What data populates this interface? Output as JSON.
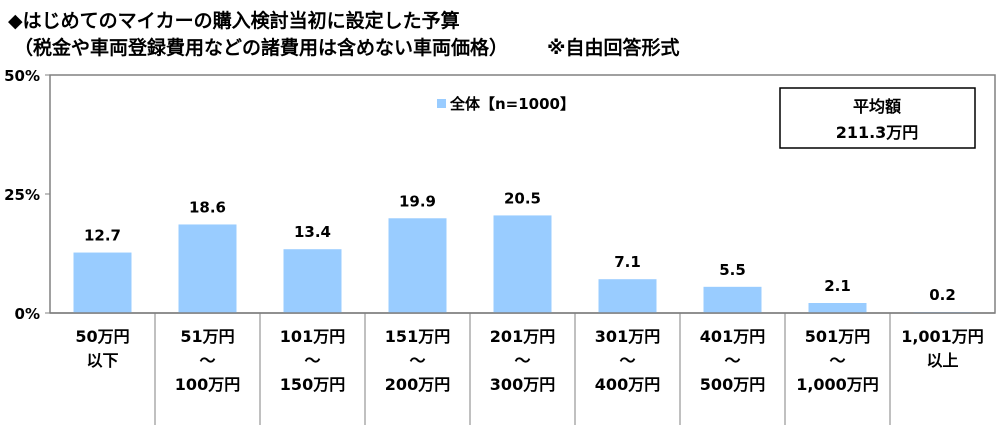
{
  "title_line1": "◆はじめてのマイカーの購入検討当初に設定した予算",
  "title_line2": "（税金や車両登録費用などの諸費用は含めない車両価格）",
  "note": "※自由回答形式",
  "summary_box": {
    "label": "平均額",
    "value": "211.3万円"
  },
  "colors": {
    "bar": "#99CCFF",
    "axis": "#808080"
  },
  "chart_data": {
    "type": "bar",
    "title": "はじめてのマイカーの購入検討当初に設定した予算",
    "ylim": [
      0,
      50
    ],
    "yticks": [
      "0%",
      "25%",
      "50%"
    ],
    "ytick_values": [
      0,
      25,
      50
    ],
    "legend": "全体【n=1000】",
    "legend_position": "top-center",
    "categories": [
      [
        "50万円",
        "以下"
      ],
      [
        "51万円",
        "～",
        "100万円"
      ],
      [
        "101万円",
        "～",
        "150万円"
      ],
      [
        "151万円",
        "～",
        "200万円"
      ],
      [
        "201万円",
        "～",
        "300万円"
      ],
      [
        "301万円",
        "～",
        "400万円"
      ],
      [
        "401万円",
        "～",
        "500万円"
      ],
      [
        "501万円",
        "～",
        "1,000万円"
      ],
      [
        "1,001万円",
        "以上"
      ]
    ],
    "values": [
      12.7,
      18.6,
      13.4,
      19.9,
      20.5,
      7.1,
      5.5,
      2.1,
      0.2
    ],
    "labels": [
      "12.7",
      "18.6",
      "13.4",
      "19.9",
      "20.5",
      "7.1",
      "5.5",
      "2.1",
      "0.2"
    ]
  }
}
